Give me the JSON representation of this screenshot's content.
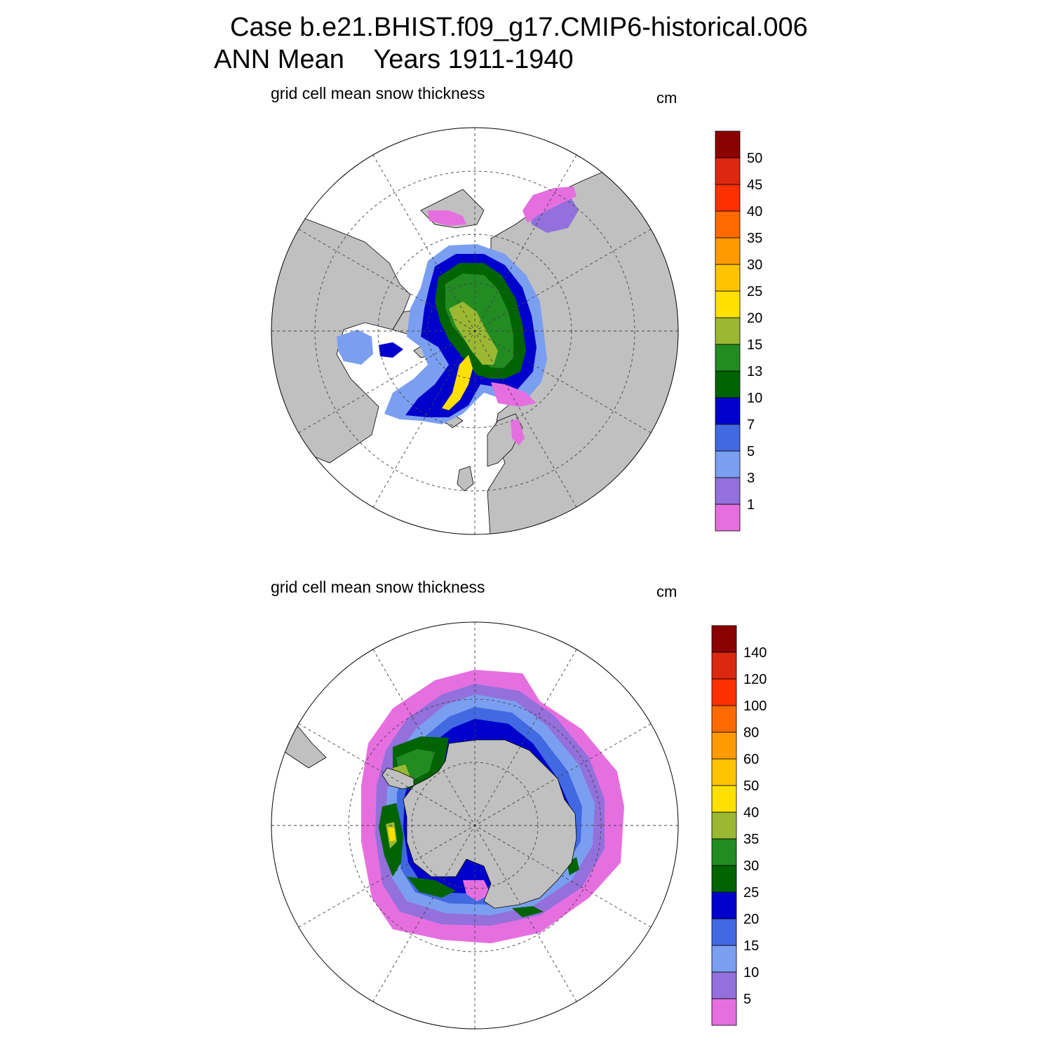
{
  "title": {
    "line1": "Case b.e21.BHIST.f09_g17.CMIP6-historical.006",
    "line2": "ANN Mean    Years 1911-1940"
  },
  "colors": {
    "land": "#c0c0c0",
    "ocean": "#ffffff",
    "levels": [
      "#e66fe0",
      "#9370db",
      "#7b9ff0",
      "#4169e1",
      "#0000cd",
      "#006400",
      "#228b22",
      "#9ab832",
      "#ffe000",
      "#ffc400",
      "#ff9b00",
      "#ff6a00",
      "#ff3000",
      "#dc2810",
      "#8b0000"
    ]
  },
  "chart_data": [
    {
      "type": "polar-map",
      "hemisphere": "north",
      "subtitle": "grid cell mean snow thickness",
      "units": "cm",
      "colorbar_labels": [
        "1",
        "3",
        "5",
        "7",
        "10",
        "13",
        "15",
        "20",
        "25",
        "30",
        "35",
        "40",
        "45",
        "50"
      ],
      "max_shown_level": 7
    },
    {
      "type": "polar-map",
      "hemisphere": "south",
      "subtitle": "grid cell mean snow thickness",
      "units": "cm",
      "colorbar_labels": [
        "5",
        "10",
        "15",
        "20",
        "25",
        "30",
        "35",
        "40",
        "50",
        "60",
        "80",
        "100",
        "120",
        "140"
      ],
      "max_shown_level": 8
    }
  ]
}
